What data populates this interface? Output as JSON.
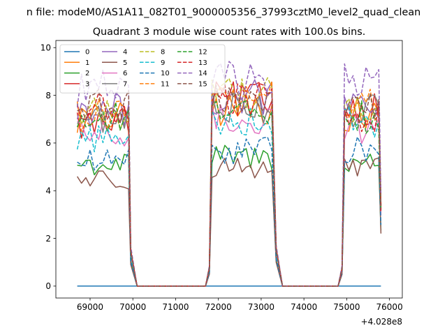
{
  "chart_data": {
    "type": "line",
    "suptitle": "n file: modeM0/AS1A11_082T01_9000005356_37993cztM0_level2_quad_clean",
    "title": "Quadrant 3 module wise count rates with 100.0s bins.",
    "xlabel": "",
    "ylabel": "",
    "x_offset_label": "+4.028e8",
    "xlim": [
      68200,
      76300
    ],
    "ylim": [
      -0.5,
      10.3
    ],
    "x_ticks": [
      69000,
      70000,
      71000,
      72000,
      73000,
      74000,
      75000,
      76000
    ],
    "x_tick_labels": [
      "69000",
      "70000",
      "71000",
      "72000",
      "73000",
      "74000",
      "75000",
      "76000"
    ],
    "y_ticks": [
      0,
      2,
      4,
      6,
      8,
      10
    ],
    "y_tick_labels": [
      "0",
      "2",
      "4",
      "6",
      "8",
      "10"
    ],
    "grid": false,
    "legend_placement": "upper-left",
    "legend_columns": 4,
    "segments": [
      {
        "start": 68700,
        "end": 69900
      },
      {
        "start": 71850,
        "end": 73300
      },
      {
        "start": 74950,
        "end": 75750
      }
    ],
    "series": [
      {
        "name": "0",
        "color": "#1f77b4",
        "dash": "solid",
        "level": [
          0,
          0,
          0
        ]
      },
      {
        "name": "1",
        "color": "#ff7f0e",
        "dash": "solid",
        "level": [
          7.0,
          7.4,
          7.2
        ]
      },
      {
        "name": "2",
        "color": "#2ca02c",
        "dash": "solid",
        "level": [
          5.1,
          5.4,
          5.2
        ]
      },
      {
        "name": "3",
        "color": "#d62728",
        "dash": "solid",
        "level": [
          6.8,
          7.8,
          7.5
        ]
      },
      {
        "name": "4",
        "color": "#9467bd",
        "dash": "solid",
        "level": [
          7.4,
          7.9,
          7.6
        ]
      },
      {
        "name": "5",
        "color": "#8c564b",
        "dash": "solid",
        "level": [
          4.5,
          5.0,
          4.9
        ]
      },
      {
        "name": "6",
        "color": "#e377c2",
        "dash": "solid",
        "level": [
          6.3,
          7.0,
          6.6
        ]
      },
      {
        "name": "7",
        "color": "#7f7f7f",
        "dash": "solid",
        "level": [
          7.0,
          7.6,
          7.3
        ]
      },
      {
        "name": "8",
        "color": "#bcbd22",
        "dash": "dashed",
        "level": [
          7.3,
          8.1,
          7.4
        ]
      },
      {
        "name": "9",
        "color": "#17becf",
        "dash": "dashed",
        "level": [
          6.2,
          7.0,
          6.9
        ]
      },
      {
        "name": "10",
        "color": "#1f77b4",
        "dash": "dashed",
        "level": [
          5.2,
          5.7,
          5.7
        ]
      },
      {
        "name": "11",
        "color": "#ff7f0e",
        "dash": "dashed",
        "level": [
          7.2,
          7.9,
          7.6
        ]
      },
      {
        "name": "12",
        "color": "#2ca02c",
        "dash": "dashed",
        "level": [
          7.0,
          7.5,
          7.1
        ]
      },
      {
        "name": "13",
        "color": "#d62728",
        "dash": "dashed",
        "level": [
          7.4,
          7.8,
          7.0
        ]
      },
      {
        "name": "14",
        "color": "#9467bd",
        "dash": "dashed",
        "level": [
          8.3,
          8.6,
          8.5
        ]
      },
      {
        "name": "15",
        "color": "#8c564b",
        "dash": "dashed",
        "level": [
          7.5,
          7.8,
          7.5
        ]
      }
    ]
  }
}
